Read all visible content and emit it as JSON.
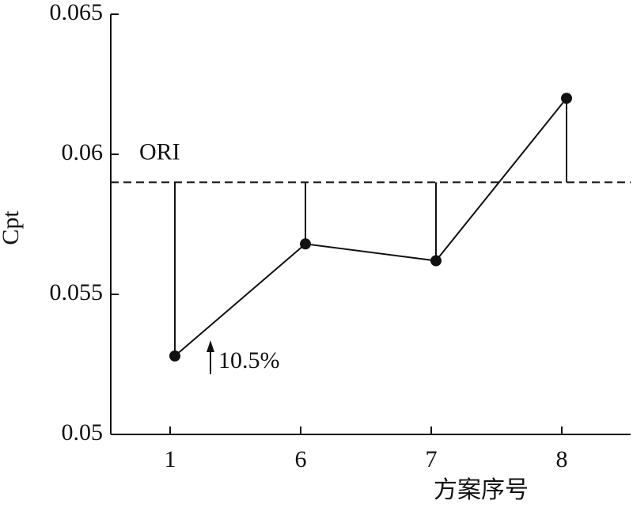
{
  "chart_data": {
    "type": "line",
    "x_label": "方案序号",
    "y_label": "Cpt",
    "categories": [
      "1",
      "6",
      "7",
      "8"
    ],
    "values": [
      0.0528,
      0.0568,
      0.0562,
      0.062
    ],
    "color": "#111111",
    "ylim": [
      0.05,
      0.065
    ],
    "yticks": [
      0.05,
      0.055,
      0.06,
      0.065
    ],
    "reference": {
      "label": "ORI",
      "value": 0.059
    },
    "annotation": "10.5%"
  }
}
